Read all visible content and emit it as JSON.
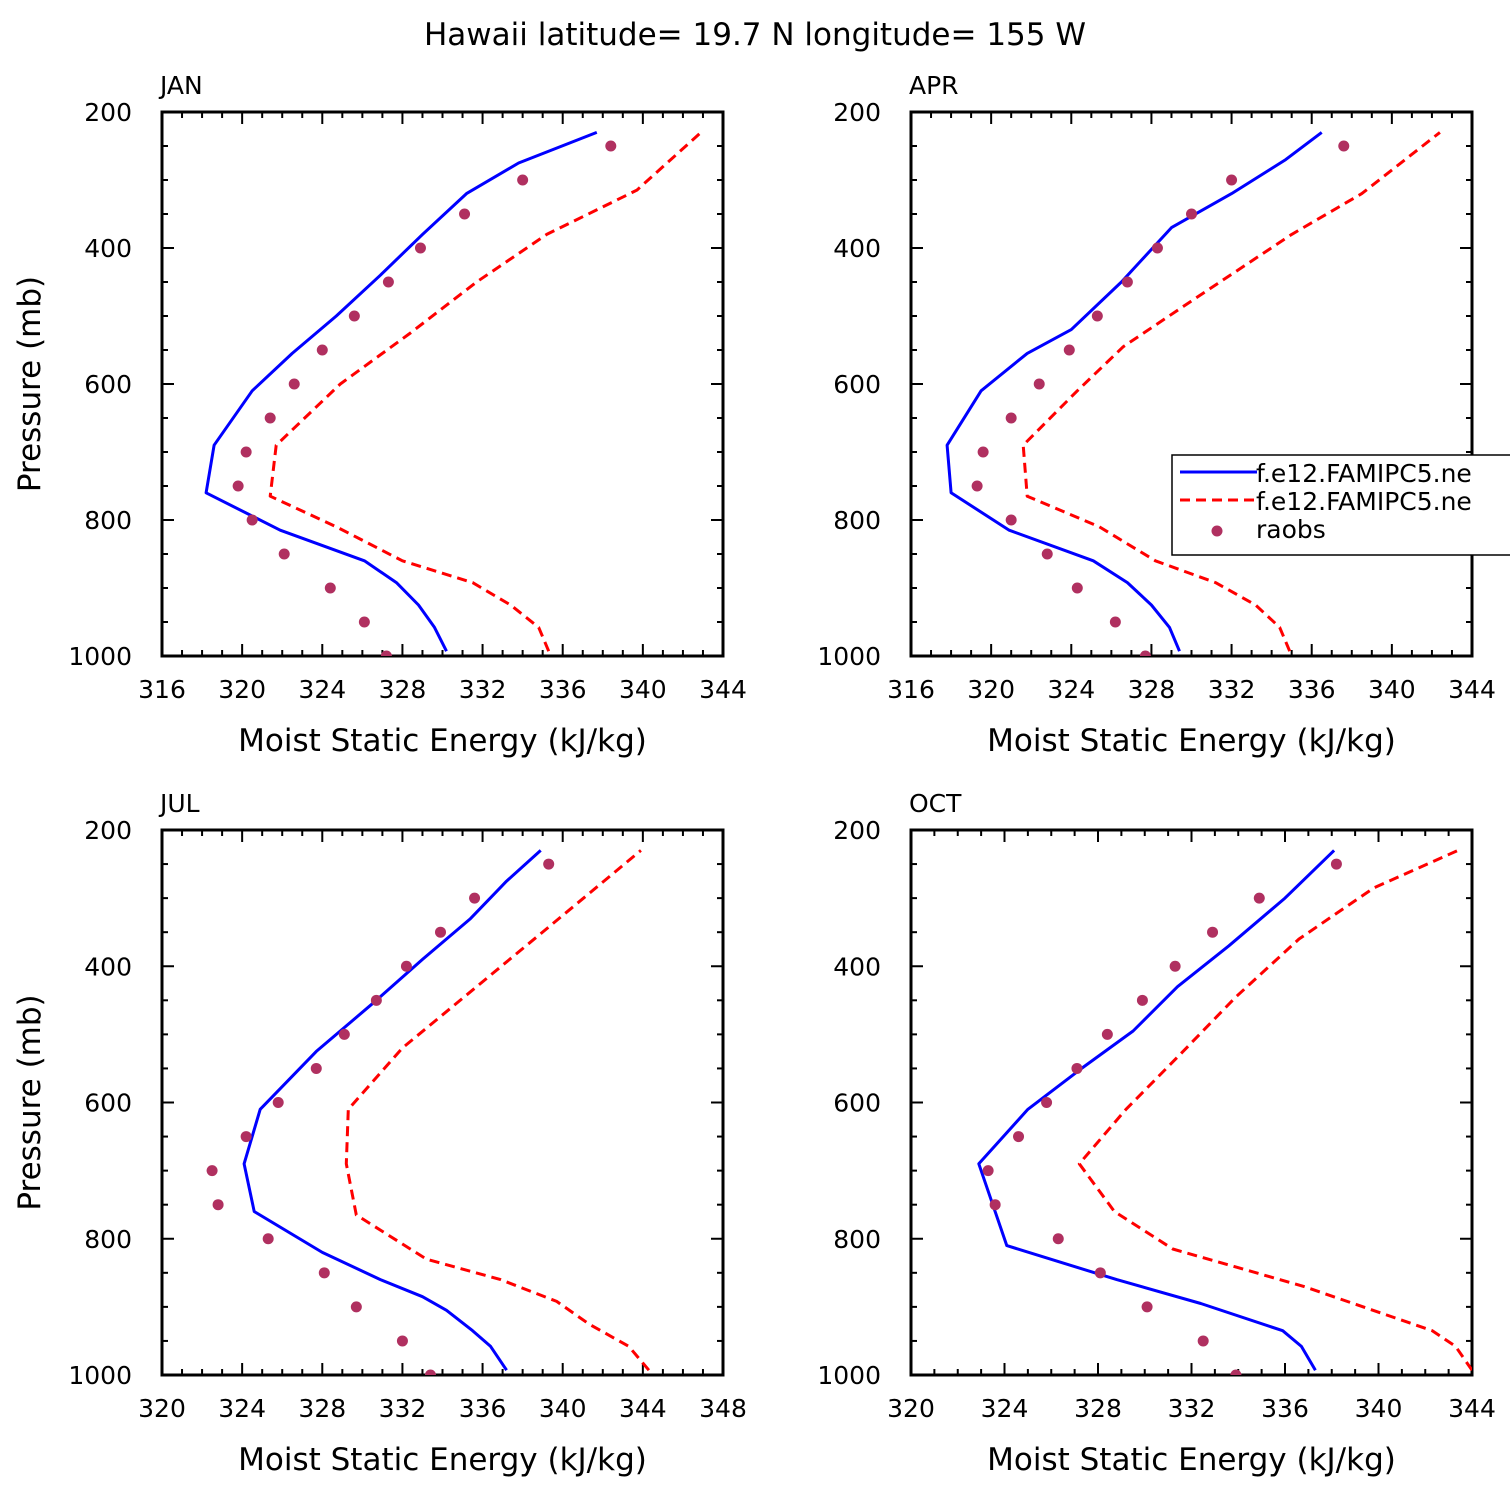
{
  "title": "Hawaii  latitude= 19.7 N longitude= 155 W",
  "colors": {
    "model_1": "#0000ff",
    "model_2": "#ff0000",
    "raobs": "#b03060",
    "axes": "#000000"
  },
  "legend": {
    "entries": [
      {
        "label": "f.e12.FAMIPC5.ne",
        "style": "solid",
        "color": "#0000ff"
      },
      {
        "label": "f.e12.FAMIPC5.ne",
        "style": "dashed",
        "color": "#ff0000"
      },
      {
        "label": "raobs",
        "style": "dot",
        "color": "#b03060"
      }
    ]
  },
  "chart_data": [
    {
      "type": "line",
      "panel_label": "JAN",
      "xlabel": "Moist Static Energy (kJ/kg)",
      "ylabel": "Pressure (mb)",
      "xlim": [
        316,
        344
      ],
      "ylim": [
        1000,
        200
      ],
      "xticks": [
        "316",
        "320",
        "324",
        "328",
        "332",
        "336",
        "340",
        "344"
      ],
      "yticks": [
        "200",
        "400",
        "600",
        "800",
        "1000"
      ],
      "grid": false,
      "series": [
        {
          "style": "solid",
          "color": "#0000ff",
          "x": [
            330.2,
            329.6,
            328.8,
            327.7,
            326.1,
            321.9,
            318.2,
            318.6,
            320.5,
            322.5,
            324.7,
            326.9,
            329.0,
            331.2,
            333.8,
            337.7
          ],
          "y": [
            993,
            958,
            925,
            892,
            860,
            815,
            760,
            690,
            610,
            555,
            500,
            440,
            380,
            320,
            275,
            230
          ]
        },
        {
          "style": "dashed",
          "color": "#ff0000",
          "x": [
            335.3,
            334.8,
            333.4,
            331.5,
            328.0,
            324.7,
            321.4,
            321.7,
            324.9,
            328.4,
            331.7,
            335.2,
            339.7,
            342.9
          ],
          "y": [
            993,
            958,
            925,
            892,
            860,
            810,
            765,
            690,
            600,
            525,
            450,
            380,
            315,
            230
          ]
        },
        {
          "style": "dot",
          "color": "#b03060",
          "x": [
            327.2,
            326.1,
            324.4,
            322.1,
            320.5,
            319.8,
            320.2,
            321.4,
            322.6,
            324.0,
            325.6,
            327.3,
            328.9,
            331.1,
            334.0,
            338.4
          ],
          "y": [
            1000,
            950,
            900,
            850,
            800,
            750,
            700,
            650,
            600,
            550,
            500,
            450,
            400,
            350,
            300,
            250
          ]
        }
      ]
    },
    {
      "type": "line",
      "panel_label": "APR",
      "xlabel": "Moist Static Energy (kJ/kg)",
      "ylabel": "",
      "xlim": [
        316,
        344
      ],
      "ylim": [
        1000,
        200
      ],
      "xticks": [
        "316",
        "320",
        "324",
        "328",
        "332",
        "336",
        "340",
        "344"
      ],
      "yticks": [
        "200",
        "400",
        "600",
        "800",
        "1000"
      ],
      "grid": false,
      "series": [
        {
          "style": "solid",
          "color": "#0000ff",
          "x": [
            329.4,
            328.9,
            328.0,
            326.8,
            325.1,
            320.9,
            318.0,
            317.8,
            319.5,
            321.8,
            324.0,
            326.5,
            329.0,
            332.0,
            334.7,
            336.5
          ],
          "y": [
            993,
            958,
            925,
            892,
            860,
            815,
            760,
            690,
            610,
            555,
            520,
            450,
            370,
            320,
            270,
            230
          ]
        },
        {
          "style": "dashed",
          "color": "#ff0000",
          "x": [
            334.9,
            334.4,
            333.2,
            331.2,
            328.2,
            325.4,
            321.8,
            321.6,
            324.3,
            326.6,
            330.4,
            335.0,
            338.5,
            342.4
          ],
          "y": [
            993,
            958,
            925,
            892,
            860,
            810,
            765,
            690,
            610,
            545,
            470,
            380,
            320,
            230
          ]
        },
        {
          "style": "dot",
          "color": "#b03060",
          "x": [
            327.7,
            326.2,
            324.3,
            322.8,
            321.0,
            319.3,
            319.6,
            321.0,
            322.4,
            323.9,
            325.3,
            326.8,
            328.3,
            330.0,
            332.0,
            337.6
          ],
          "y": [
            1000,
            950,
            900,
            850,
            800,
            750,
            700,
            650,
            600,
            550,
            500,
            450,
            400,
            350,
            300,
            250
          ]
        }
      ]
    },
    {
      "type": "line",
      "panel_label": "JUL",
      "xlabel": "Moist Static Energy (kJ/kg)",
      "ylabel": "Pressure (mb)",
      "xlim": [
        320,
        348
      ],
      "ylim": [
        1000,
        200
      ],
      "xticks": [
        "320",
        "324",
        "328",
        "332",
        "336",
        "340",
        "344",
        "348"
      ],
      "yticks": [
        "200",
        "400",
        "600",
        "800",
        "1000"
      ],
      "grid": false,
      "series": [
        {
          "style": "solid",
          "color": "#0000ff",
          "x": [
            337.2,
            336.4,
            335.5,
            334.2,
            333.0,
            330.9,
            328.0,
            324.6,
            324.1,
            324.9,
            327.7,
            330.5,
            333.0,
            335.4,
            337.2,
            338.9
          ],
          "y": [
            993,
            958,
            935,
            905,
            885,
            860,
            820,
            760,
            690,
            610,
            525,
            455,
            390,
            330,
            275,
            230
          ]
        },
        {
          "style": "dashed",
          "color": "#ff0000",
          "x": [
            344.3,
            343.3,
            341.3,
            339.7,
            336.9,
            333.2,
            329.7,
            329.2,
            329.3,
            332.0,
            335.7,
            339.4,
            343.9
          ],
          "y": [
            993,
            958,
            925,
            892,
            860,
            830,
            765,
            690,
            610,
            520,
            430,
            340,
            230
          ]
        },
        {
          "style": "dot",
          "color": "#b03060",
          "x": [
            333.4,
            332.0,
            329.7,
            328.1,
            325.3,
            322.8,
            322.5,
            324.2,
            325.8,
            327.7,
            329.1,
            330.7,
            332.2,
            333.9,
            335.6,
            339.3
          ],
          "y": [
            1000,
            950,
            900,
            850,
            800,
            750,
            700,
            650,
            600,
            550,
            500,
            450,
            400,
            350,
            300,
            250
          ]
        }
      ]
    },
    {
      "type": "line",
      "panel_label": "OCT",
      "xlabel": "Moist Static Energy (kJ/kg)",
      "ylabel": "",
      "xlim": [
        320,
        344
      ],
      "ylim": [
        1000,
        200
      ],
      "xticks": [
        "320",
        "324",
        "328",
        "332",
        "336",
        "340",
        "344"
      ],
      "yticks": [
        "200",
        "400",
        "600",
        "800",
        "1000"
      ],
      "grid": false,
      "series": [
        {
          "style": "solid",
          "color": "#0000ff",
          "x": [
            337.3,
            336.7,
            335.9,
            332.4,
            328.8,
            324.1,
            322.9,
            325.0,
            327.3,
            329.5,
            331.4,
            333.6,
            336.0,
            338.1
          ],
          "y": [
            993,
            958,
            935,
            895,
            860,
            810,
            690,
            610,
            550,
            495,
            430,
            370,
            300,
            230
          ]
        },
        {
          "style": "dashed",
          "color": "#ff0000",
          "x": [
            344.0,
            343.3,
            342.3,
            336.8,
            331.2,
            328.7,
            327.2,
            329.2,
            331.5,
            333.9,
            336.6,
            339.8,
            343.4
          ],
          "y": [
            993,
            958,
            935,
            870,
            815,
            760,
            690,
            610,
            530,
            445,
            360,
            285,
            230
          ]
        },
        {
          "style": "dot",
          "color": "#b03060",
          "x": [
            333.9,
            332.5,
            330.1,
            328.1,
            326.3,
            323.6,
            323.3,
            324.6,
            325.8,
            327.1,
            328.4,
            329.9,
            331.3,
            332.9,
            334.9,
            338.2
          ],
          "y": [
            1000,
            950,
            900,
            850,
            800,
            750,
            700,
            650,
            600,
            550,
            500,
            450,
            400,
            350,
            300,
            250
          ]
        }
      ]
    }
  ]
}
